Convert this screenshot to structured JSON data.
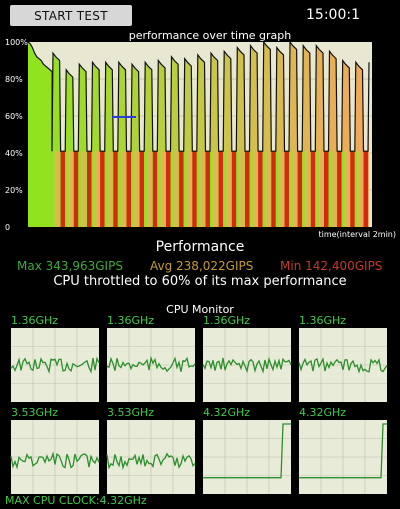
{
  "header": {
    "start_label": "START TEST",
    "clock": "15:00:1"
  },
  "graph": {
    "title": "performance over time graph",
    "y_ticks": [
      "100%",
      "80%",
      "60%",
      "40%",
      "20%",
      "0"
    ],
    "x_caption": "time(interval 2min)"
  },
  "chart_data": {
    "type": "area",
    "title": "performance over time graph",
    "xlabel": "time(interval 2min)",
    "ylabel": "",
    "ylim": [
      0,
      100
    ],
    "y_unit": "%",
    "throttle_line": 60,
    "floor_bar_level": 41,
    "cycles": 24,
    "cycle_peaks": [
      94,
      85,
      88,
      89,
      89,
      89,
      88,
      89,
      90,
      92,
      91,
      93,
      94,
      95,
      97,
      98,
      100,
      97,
      100,
      98,
      98,
      95,
      90,
      89
    ],
    "initial_curve": [
      [
        0,
        100
      ],
      [
        0.5,
        99
      ],
      [
        1,
        97
      ],
      [
        1.5,
        94
      ],
      [
        2,
        92
      ],
      [
        2.5,
        91
      ],
      [
        3,
        90
      ],
      [
        3.5,
        88
      ],
      [
        4,
        87
      ],
      [
        4.5,
        86
      ],
      [
        5,
        85
      ],
      [
        5.5,
        84
      ]
    ],
    "colors": {
      "plot_bg": "#e8e8d2",
      "gradient_left": "#8de41c",
      "gradient_right": "#f2a85a",
      "low_bar": "#d22b12",
      "line": "#111111",
      "marker": "#2b3fd6"
    }
  },
  "performance": {
    "title": "Performance",
    "max": "Max 343,963GIPS",
    "avg": "Avg 238,022GIPS",
    "min": "Min 142,400GIPS",
    "throttle": "CPU throttled to 60% of its max performance"
  },
  "cpu_monitor": {
    "title": "CPU Monitor",
    "cores": [
      {
        "label": "1.36GHz",
        "level": 0.5,
        "spike": false
      },
      {
        "label": "1.36GHz",
        "level": 0.5,
        "spike": false
      },
      {
        "label": "1.36GHz",
        "level": 0.5,
        "spike": false
      },
      {
        "label": "1.36GHz",
        "level": 0.5,
        "spike": false
      },
      {
        "label": "3.53GHz",
        "level": 0.45,
        "spike": false
      },
      {
        "label": "3.53GHz",
        "level": 0.45,
        "spike": false
      },
      {
        "label": "4.32GHz",
        "level": 0.2,
        "spike": true
      },
      {
        "label": "4.32GHz",
        "level": 0.2,
        "spike": true
      }
    ],
    "max_clock": "MAX CPU CLOCK:4.32GHz",
    "colors": {
      "panel_bg": "#e9ebd9",
      "grid": "#bfbfb0",
      "line": "#2b8f2b"
    }
  }
}
